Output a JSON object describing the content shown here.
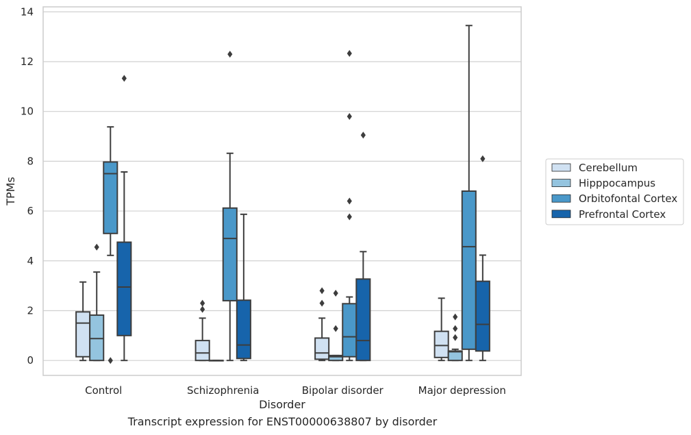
{
  "caption": "Transcript expression for ENST00000638807 by disorder",
  "colors": {
    "Cerebellum": "#d0e1f2",
    "Hipppocampus": "#94c4df",
    "Orbitofontal Cortex": "#4a98c9",
    "Prefrontal Cortex": "#1764ab",
    "line": "#3d3d3d",
    "grid": "#d0d0d0"
  },
  "chart_data": {
    "type": "box",
    "xlabel": "Disorder",
    "ylabel": "TPMs",
    "ylim": [
      -0.6,
      14.2
    ],
    "yticks": [
      0,
      2,
      4,
      6,
      8,
      10,
      12,
      14
    ],
    "grid": "horizontal",
    "legend_position": "right",
    "categories": [
      "Control",
      "Schizophrenia",
      "Bipolar disorder",
      "Major depression"
    ],
    "series": [
      {
        "name": "Cerebellum",
        "boxes": [
          {
            "category": "Control",
            "whisker_low": 0.0,
            "q1": 0.15,
            "median": 1.5,
            "q3": 1.95,
            "whisker_high": 3.15,
            "outliers": []
          },
          {
            "category": "Schizophrenia",
            "whisker_low": 0.0,
            "q1": 0.0,
            "median": 0.3,
            "q3": 0.8,
            "whisker_high": 1.7,
            "outliers": [
              2.05,
              2.3
            ]
          },
          {
            "category": "Bipolar disorder",
            "whisker_low": 0.0,
            "q1": 0.05,
            "median": 0.3,
            "q3": 0.9,
            "whisker_high": 1.7,
            "outliers": [
              2.3,
              2.8
            ]
          },
          {
            "category": "Major depression",
            "whisker_low": 0.0,
            "q1": 0.12,
            "median": 0.6,
            "q3": 1.17,
            "whisker_high": 2.5,
            "outliers": []
          }
        ]
      },
      {
        "name": "Hipppocampus",
        "boxes": [
          {
            "category": "Control",
            "whisker_low": 0.0,
            "q1": 0.0,
            "median": 0.88,
            "q3": 1.82,
            "whisker_high": 3.55,
            "outliers": [
              4.55
            ]
          },
          {
            "category": "Schizophrenia",
            "whisker_low": 0.0,
            "q1": 0.0,
            "median": 0.0,
            "q3": 0.0,
            "whisker_high": 0.0,
            "outliers": []
          },
          {
            "category": "Bipolar disorder",
            "whisker_low": 0.0,
            "q1": 0.0,
            "median": 0.15,
            "q3": 0.2,
            "whisker_high": 0.2,
            "outliers": [
              1.28,
              2.7
            ]
          },
          {
            "category": "Major depression",
            "whisker_low": 0.0,
            "q1": 0.0,
            "median": 0.35,
            "q3": 0.38,
            "whisker_high": 0.45,
            "outliers": [
              0.92,
              1.28,
              1.75
            ]
          }
        ]
      },
      {
        "name": "Orbitofontal Cortex",
        "boxes": [
          {
            "category": "Control",
            "whisker_low": 4.22,
            "q1": 5.1,
            "median": 7.5,
            "q3": 7.97,
            "whisker_high": 9.38,
            "outliers": [
              0.0
            ]
          },
          {
            "category": "Schizophrenia",
            "whisker_low": 0.0,
            "q1": 2.4,
            "median": 4.9,
            "q3": 6.12,
            "whisker_high": 8.32,
            "outliers": [
              12.3
            ]
          },
          {
            "category": "Bipolar disorder",
            "whisker_low": 0.0,
            "q1": 0.15,
            "median": 0.95,
            "q3": 2.28,
            "whisker_high": 2.55,
            "outliers": [
              5.77,
              6.4,
              9.8,
              12.33
            ]
          },
          {
            "category": "Major depression",
            "whisker_low": 0.0,
            "q1": 0.45,
            "median": 4.57,
            "q3": 6.8,
            "whisker_high": 13.45,
            "outliers": []
          }
        ]
      },
      {
        "name": "Prefrontal Cortex",
        "boxes": [
          {
            "category": "Control",
            "whisker_low": 0.0,
            "q1": 1.0,
            "median": 2.95,
            "q3": 4.75,
            "whisker_high": 7.57,
            "outliers": [
              11.33
            ]
          },
          {
            "category": "Schizophrenia",
            "whisker_low": 0.0,
            "q1": 0.08,
            "median": 0.62,
            "q3": 2.42,
            "whisker_high": 5.87,
            "outliers": []
          },
          {
            "category": "Bipolar disorder",
            "whisker_low": 0.0,
            "q1": 0.0,
            "median": 0.8,
            "q3": 3.27,
            "whisker_high": 4.37,
            "outliers": [
              9.05
            ]
          },
          {
            "category": "Major depression",
            "whisker_low": 0.0,
            "q1": 0.38,
            "median": 1.45,
            "q3": 3.18,
            "whisker_high": 4.23,
            "outliers": [
              8.1
            ]
          }
        ]
      }
    ]
  }
}
